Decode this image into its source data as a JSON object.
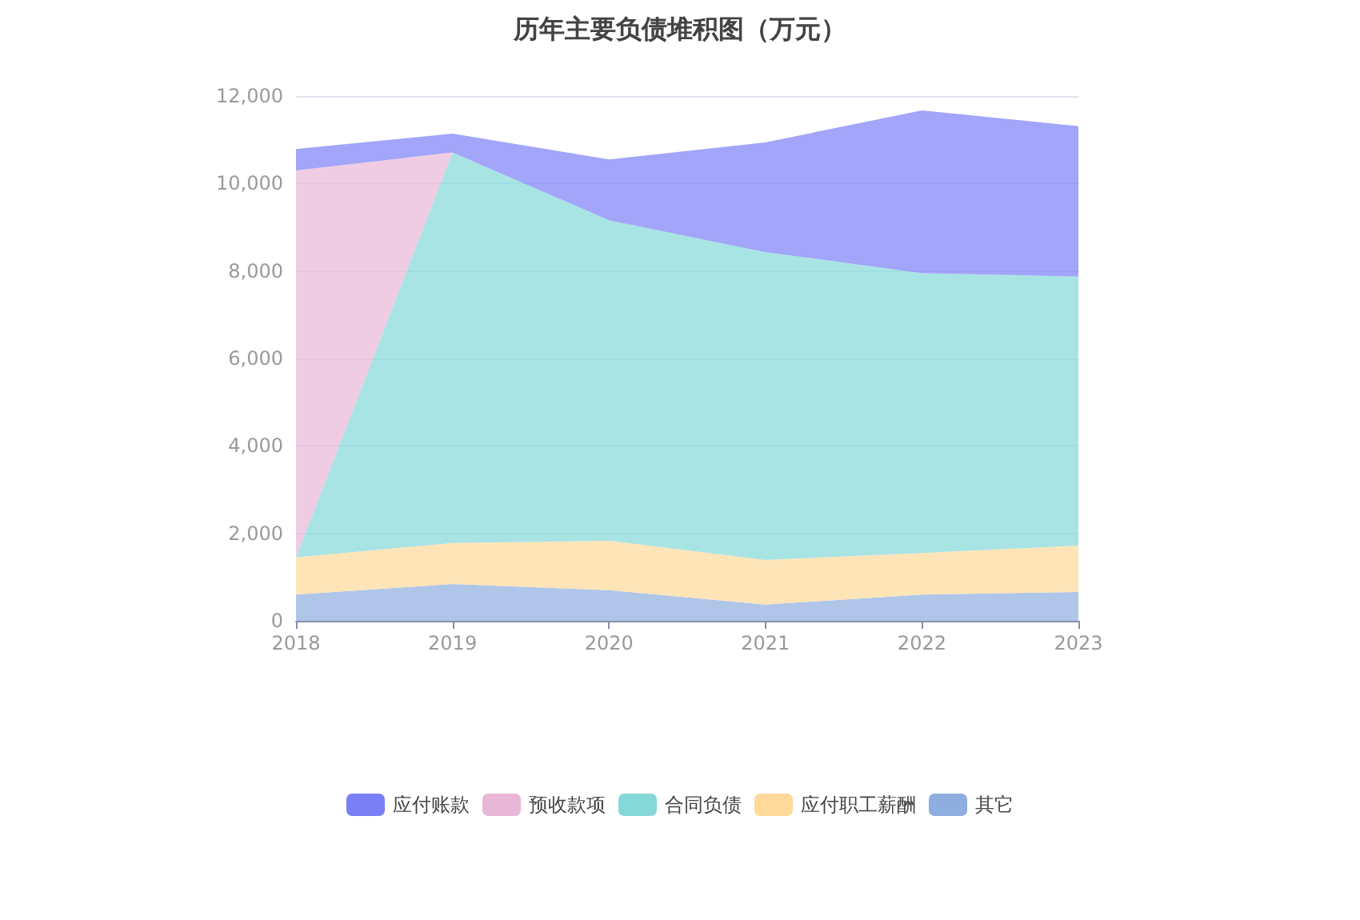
{
  "chart_data": {
    "type": "area",
    "title": "历年主要负债堆积图（万元）",
    "stacked": true,
    "categories": [
      "2018",
      "2019",
      "2020",
      "2021",
      "2022",
      "2023"
    ],
    "series": [
      {
        "name": "其它",
        "color": "#8eaee0",
        "values": [
          600,
          840,
          700,
          370,
          600,
          660
        ]
      },
      {
        "name": "应付职工薪酬",
        "color": "#ffd99a",
        "values": [
          850,
          940,
          1130,
          1020,
          950,
          1060
        ]
      },
      {
        "name": "合同负债",
        "color": "#85d8d8",
        "values": [
          0,
          8930,
          7330,
          7040,
          6400,
          6150
        ]
      },
      {
        "name": "预收款项",
        "color": "#e8b7d7",
        "values": [
          8850,
          0,
          0,
          0,
          0,
          0
        ]
      },
      {
        "name": "应付账款",
        "color": "#7b7ff6",
        "values": [
          490,
          430,
          1390,
          2510,
          3720,
          3440
        ]
      }
    ],
    "ylim": [
      0,
      12000
    ],
    "yticks": [
      0,
      {
        "value": 2000,
        "label": "2,000"
      },
      {
        "value": 4000,
        "label": "4,000"
      },
      {
        "value": 6000,
        "label": "6,000"
      },
      {
        "value": 8000,
        "label": "8,000"
      },
      {
        "value": 10000,
        "label": "10,000"
      },
      {
        "value": 12000,
        "label": "12,000"
      }
    ],
    "grid": "y",
    "legend": "bottom",
    "marker": "none"
  }
}
